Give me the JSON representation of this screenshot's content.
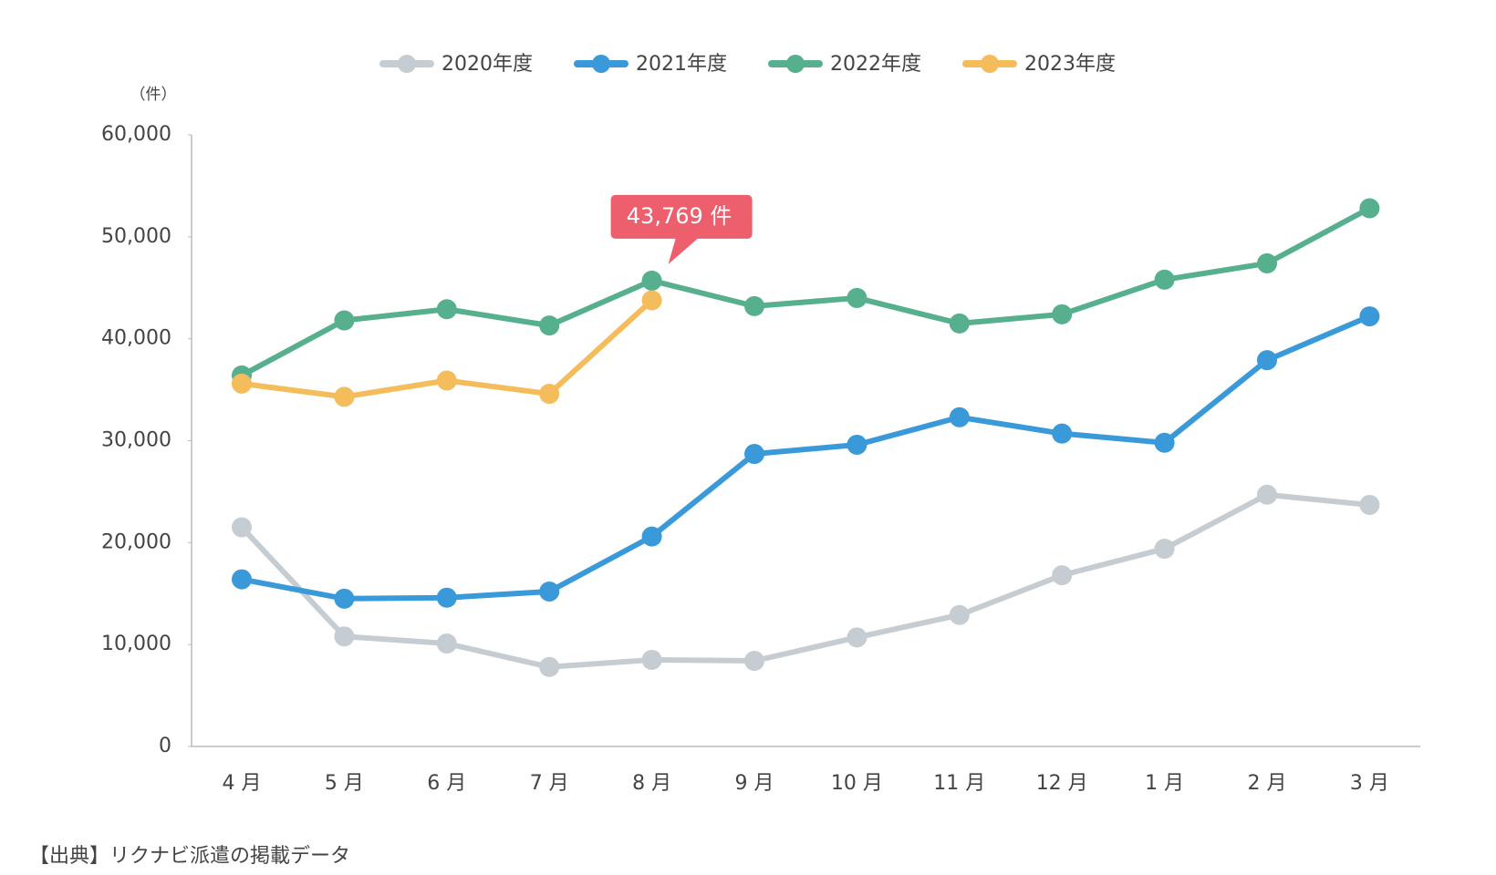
{
  "chart_data": {
    "type": "line",
    "unit_label": "（件）",
    "annotation": "43,769 件",
    "source": "【出典】リクナビ派遣の掲載データ",
    "categories": [
      "4 月",
      "5 月",
      "6 月",
      "7 月",
      "8 月",
      "9 月",
      "10 月",
      "11 月",
      "12 月",
      "1 月",
      "2 月",
      "3 月"
    ],
    "series": [
      {
        "name": "2020年度",
        "color": "#c5cdd2",
        "values": [
          21500,
          10800,
          10100,
          7800,
          8500,
          8400,
          10700,
          12900,
          16800,
          19400,
          24700,
          23700
        ]
      },
      {
        "name": "2021年度",
        "color": "#3a9ad9",
        "values": [
          16400,
          14500,
          14600,
          15200,
          20600,
          28700,
          29600,
          32300,
          30700,
          29800,
          37900,
          42200
        ]
      },
      {
        "name": "2022年度",
        "color": "#56b08e",
        "values": [
          36400,
          41800,
          42900,
          41300,
          45700,
          43200,
          44000,
          41500,
          42400,
          45800,
          47400,
          52800
        ]
      },
      {
        "name": "2023年度",
        "color": "#f5bc5c",
        "values": [
          35600,
          34300,
          35900,
          34600,
          43769,
          null,
          null,
          null,
          null,
          null,
          null,
          null
        ]
      }
    ],
    "annotation_color": "#ee5f6e",
    "ylim": [
      0,
      60000
    ],
    "yticks": [
      0,
      {
        "value": 10000,
        "label": "10,000"
      },
      {
        "value": 20000,
        "label": "20,000"
      },
      {
        "value": 30000,
        "label": "30,000"
      },
      {
        "value": 40000,
        "label": "40,000"
      },
      {
        "value": 50000,
        "label": "50,000"
      },
      {
        "value": 60000,
        "label": "60,000"
      }
    ]
  }
}
